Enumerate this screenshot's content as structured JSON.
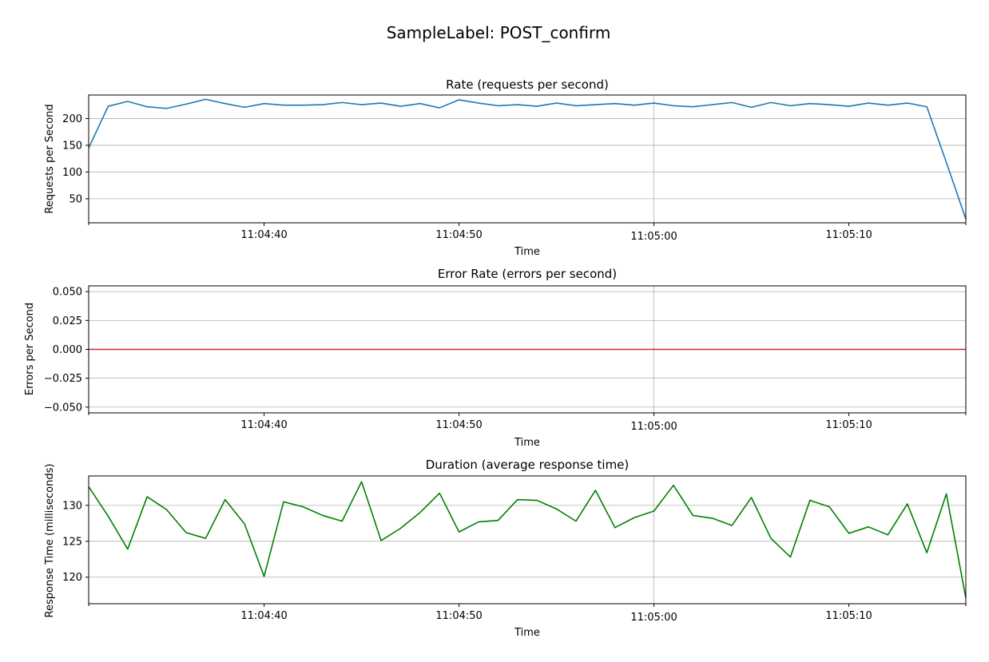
{
  "figure": {
    "suptitle": "SampleLabel: POST_confirm"
  },
  "chart_data": [
    {
      "type": "line",
      "title": "Rate (requests per second)",
      "xlabel": "Time",
      "ylabel": "Requests per Second",
      "color": "#1f77b4",
      "xlim": [
        "11:04:31",
        "11:05:16"
      ],
      "ylim": [
        5,
        244
      ],
      "yticks": [
        50,
        100,
        150,
        200
      ],
      "ytick_labels": [
        "50",
        "100",
        "150",
        "200"
      ],
      "xticks": [
        "11:04:40",
        "11:04:50",
        "11:05:00",
        "11:05:10"
      ],
      "xtick_labels": [
        "11:04:40",
        "11:04:50",
        "11:05:00",
        "11:05:10"
      ],
      "grid": true,
      "x": [
        "11:04:31",
        "11:04:32",
        "11:04:33",
        "11:04:34",
        "11:04:35",
        "11:04:36",
        "11:04:37",
        "11:04:38",
        "11:04:39",
        "11:04:40",
        "11:04:41",
        "11:04:42",
        "11:04:43",
        "11:04:44",
        "11:04:45",
        "11:04:46",
        "11:04:47",
        "11:04:48",
        "11:04:49",
        "11:04:50",
        "11:04:51",
        "11:04:52",
        "11:04:53",
        "11:04:54",
        "11:04:55",
        "11:04:56",
        "11:04:57",
        "11:04:58",
        "11:04:59",
        "11:05:00",
        "11:05:01",
        "11:05:02",
        "11:05:03",
        "11:05:04",
        "11:05:05",
        "11:05:06",
        "11:05:07",
        "11:05:08",
        "11:05:09",
        "11:05:10",
        "11:05:11",
        "11:05:12",
        "11:05:13",
        "11:05:14",
        "11:05:15",
        "11:05:16"
      ],
      "series": [
        {
          "values": [
            145,
            223,
            232,
            222,
            219,
            227,
            236,
            228,
            221,
            228,
            225,
            225,
            226,
            230,
            226,
            229,
            223,
            228,
            220,
            235,
            229,
            224,
            226,
            223,
            229,
            224,
            226,
            228,
            225,
            229,
            224,
            222,
            226,
            230,
            221,
            230,
            224,
            228,
            226,
            223,
            229,
            225,
            229,
            222,
            118,
            12
          ]
        }
      ]
    },
    {
      "type": "line",
      "title": "Error Rate (errors per second)",
      "xlabel": "Time",
      "ylabel": "Errors per Second",
      "color": "#d62728",
      "xlim": [
        "11:04:31",
        "11:05:16"
      ],
      "ylim": [
        -0.055,
        0.055
      ],
      "yticks": [
        -0.05,
        -0.025,
        0.0,
        0.025,
        0.05
      ],
      "ytick_labels": [
        "−0.050",
        "−0.025",
        "0.000",
        "0.025",
        "0.050"
      ],
      "xticks": [
        "11:04:40",
        "11:04:50",
        "11:05:00",
        "11:05:10"
      ],
      "xtick_labels": [
        "11:04:40",
        "11:04:50",
        "11:05:00",
        "11:05:10"
      ],
      "grid": true,
      "x": [
        "11:04:31",
        "11:05:16"
      ],
      "series": [
        {
          "values": [
            0,
            0
          ]
        }
      ]
    },
    {
      "type": "line",
      "title": "Duration (average response time)",
      "xlabel": "Time",
      "ylabel": "Response Time (milliseconds)",
      "color": "#008000",
      "xlim": [
        "11:04:31",
        "11:05:16"
      ],
      "ylim": [
        116.3,
        134.1
      ],
      "yticks": [
        120,
        125,
        130
      ],
      "ytick_labels": [
        "120",
        "125",
        "130"
      ],
      "xticks": [
        "11:04:40",
        "11:04:50",
        "11:05:00",
        "11:05:10"
      ],
      "xtick_labels": [
        "11:04:40",
        "11:04:50",
        "11:05:00",
        "11:05:10"
      ],
      "grid": true,
      "x": [
        "11:04:31",
        "11:04:32",
        "11:04:33",
        "11:04:34",
        "11:04:35",
        "11:04:36",
        "11:04:37",
        "11:04:38",
        "11:04:39",
        "11:04:40",
        "11:04:41",
        "11:04:42",
        "11:04:43",
        "11:04:44",
        "11:04:45",
        "11:04:46",
        "11:04:47",
        "11:04:48",
        "11:04:49",
        "11:04:50",
        "11:04:51",
        "11:04:52",
        "11:04:53",
        "11:04:54",
        "11:04:55",
        "11:04:56",
        "11:04:57",
        "11:04:58",
        "11:04:59",
        "11:05:00",
        "11:05:01",
        "11:05:02",
        "11:05:03",
        "11:05:04",
        "11:05:05",
        "11:05:06",
        "11:05:07",
        "11:05:08",
        "11:05:09",
        "11:05:10",
        "11:05:11",
        "11:05:12",
        "11:05:13",
        "11:05:14",
        "11:05:15",
        "11:05:16"
      ],
      "series": [
        {
          "values": [
            132.6,
            128.5,
            123.9,
            131.2,
            129.4,
            126.2,
            125.4,
            130.8,
            127.4,
            120.1,
            130.5,
            129.8,
            128.6,
            127.8,
            133.3,
            125.1,
            126.8,
            129.0,
            131.7,
            126.3,
            127.7,
            127.9,
            130.8,
            130.7,
            129.5,
            127.8,
            132.1,
            126.9,
            128.3,
            129.2,
            132.8,
            128.6,
            128.2,
            127.2,
            131.1,
            125.4,
            122.8,
            130.7,
            129.8,
            126.1,
            127.0,
            125.9,
            130.2,
            123.4,
            131.6,
            117.1
          ]
        }
      ]
    }
  ]
}
